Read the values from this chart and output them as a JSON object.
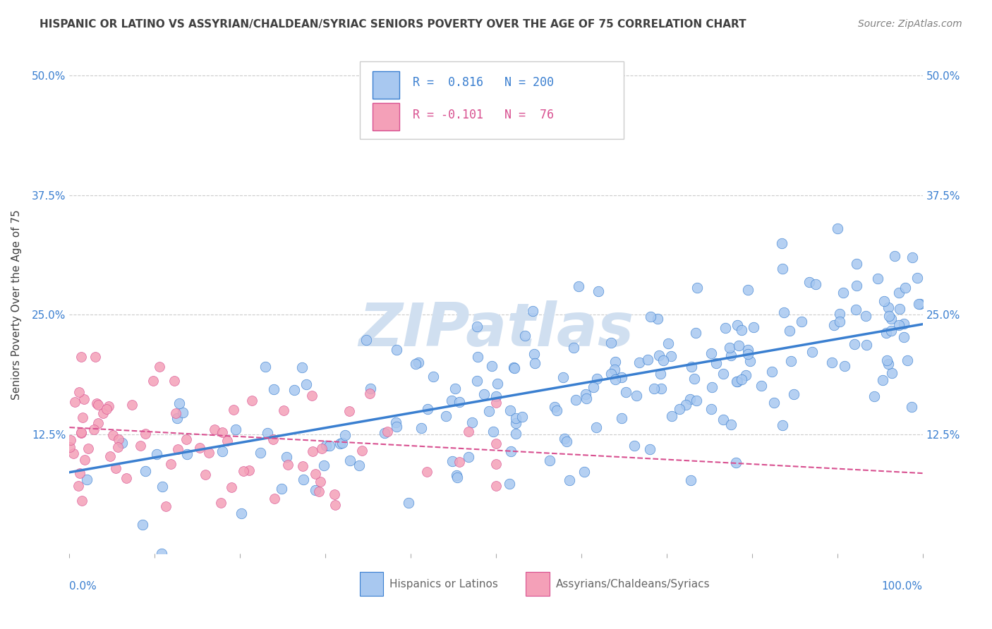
{
  "title": "HISPANIC OR LATINO VS ASSYRIAN/CHALDEAN/SYRIAC SENIORS POVERTY OVER THE AGE OF 75 CORRELATION CHART",
  "source_text": "Source: ZipAtlas.com",
  "ylabel": "Seniors Poverty Over the Age of 75",
  "xlim": [
    0,
    100
  ],
  "ylim": [
    0,
    52
  ],
  "yticks": [
    0,
    12.5,
    25.0,
    37.5,
    50.0
  ],
  "yticklabels": [
    "",
    "12.5%",
    "25.0%",
    "37.5%",
    "50.0%"
  ],
  "color_blue": "#A8C8F0",
  "color_pink": "#F4A0B8",
  "color_blue_dark": "#3A7FD0",
  "color_pink_dark": "#D85090",
  "color_title": "#404040",
  "color_source": "#808080",
  "watermark_text": "ZIPatlas",
  "watermark_color": "#D0DFF0",
  "blue_r": 0.816,
  "blue_n": 200,
  "pink_r": -0.101,
  "pink_n": 76,
  "blue_slope": 0.155,
  "blue_intercept": 8.5,
  "pink_slope": -0.048,
  "pink_intercept": 13.2,
  "seed_blue": 42,
  "seed_pink": 123
}
